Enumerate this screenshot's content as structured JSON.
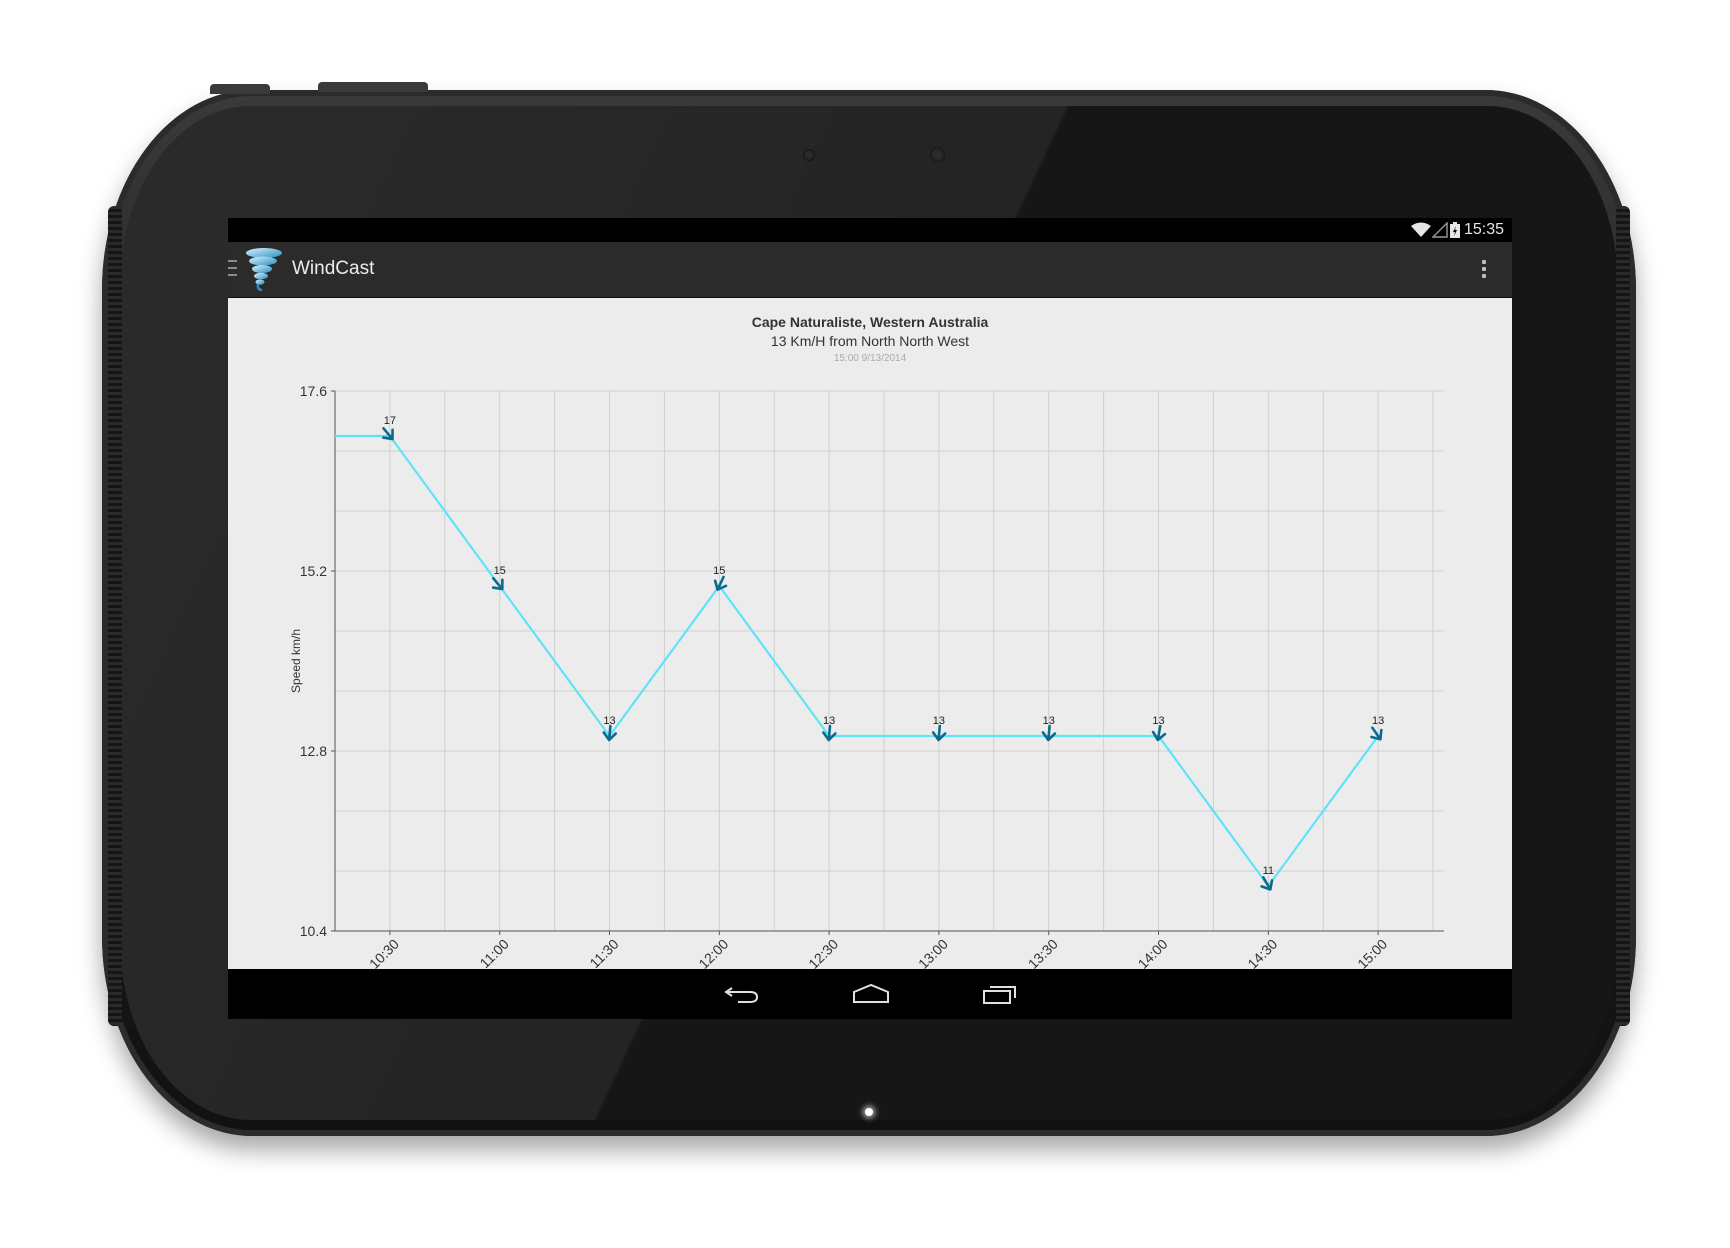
{
  "statusbar": {
    "time": "15:35"
  },
  "actionbar": {
    "title": "WindCast"
  },
  "header": {
    "location": "Cape Naturaliste, Western Australia",
    "summary": "13 Km/H from North North West",
    "timestamp": "15:00 9/13/2014"
  },
  "chart_data": {
    "type": "line",
    "title": "Cape Naturaliste, Western Australia",
    "ylabel": "Speed km/h",
    "xlabel": "",
    "categories": [
      "10:30",
      "11:00",
      "11:30",
      "12:00",
      "12:30",
      "13:00",
      "13:30",
      "14:00",
      "14:30",
      "15:00"
    ],
    "values": [
      17,
      15,
      13,
      15,
      13,
      13,
      13,
      13,
      11,
      13
    ],
    "data_labels": [
      "17",
      "15",
      "13",
      "15",
      "13",
      "13",
      "13",
      "13",
      "11",
      "13"
    ],
    "yticks": [
      "17.6",
      "15.2",
      "12.8",
      "10.4"
    ],
    "ylim": [
      10.4,
      17.6
    ],
    "grid": true,
    "line_color": "#5fe3f8",
    "marker_color": "#0a6b8c",
    "marker": "wind-direction-arrow"
  },
  "colors": {
    "actionbar": "#2b2b2b",
    "content_bg": "#ececec",
    "grid": "#cfcfcf"
  }
}
